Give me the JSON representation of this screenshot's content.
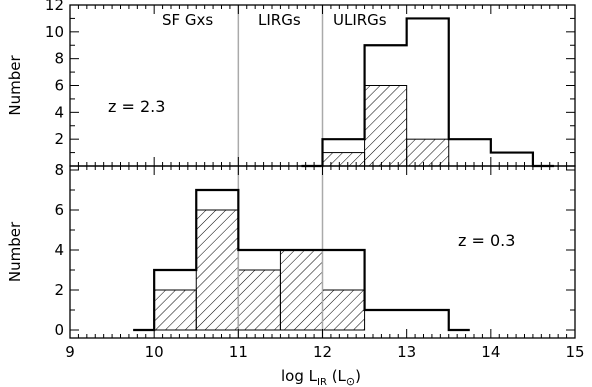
{
  "chart_data": [
    {
      "type": "bar",
      "panel": "top",
      "ylabel": "Number",
      "xlim": [
        9,
        15
      ],
      "ylim": [
        0,
        12
      ],
      "yticks": [
        2,
        4,
        6,
        8,
        10,
        12
      ],
      "annotation": "z = 2.3",
      "bin_edges": [
        11.75,
        12.0,
        12.5,
        13.0,
        13.5,
        14.0,
        14.5,
        14.75
      ],
      "series": [
        {
          "name": "",
          "style": "outline",
          "values": [
            0,
            2,
            9,
            11,
            2,
            1,
            0
          ]
        },
        {
          "name": "",
          "style": "hatched",
          "values": [
            0,
            1,
            6,
            2,
            0,
            0,
            0
          ]
        }
      ],
      "vlines": [
        11,
        12
      ],
      "regions": [
        "SF Gxs",
        "LIRGs",
        "ULIRGs"
      ]
    },
    {
      "type": "bar",
      "panel": "bottom",
      "ylabel": "Number",
      "xlabel": "log L",
      "xlabel_sub": "IR",
      "xlabel_tail": " (L",
      "xlabel_symbol": "⊙",
      "xlabel_close": ")",
      "xlim": [
        9,
        15
      ],
      "ylim": [
        -0.4,
        8.2
      ],
      "yticks": [
        0,
        2,
        4,
        6,
        8
      ],
      "xticks": [
        9,
        10,
        11,
        12,
        13,
        14,
        15
      ],
      "annotation": "z = 0.3",
      "bin_edges": [
        9.75,
        10.0,
        10.5,
        11.0,
        11.5,
        12.0,
        12.5,
        13.0,
        13.5,
        13.75
      ],
      "series": [
        {
          "name": "",
          "style": "outline",
          "values": [
            0,
            3,
            7,
            4,
            4,
            4,
            1,
            1,
            0
          ]
        },
        {
          "name": "",
          "style": "hatched",
          "values": [
            0,
            2,
            6,
            3,
            4,
            2,
            0,
            0,
            0
          ]
        }
      ],
      "vlines": [
        11,
        12
      ]
    }
  ],
  "colors": {
    "axis": "#000000",
    "vline": "#aaaaaa",
    "hatch": "#000000"
  }
}
